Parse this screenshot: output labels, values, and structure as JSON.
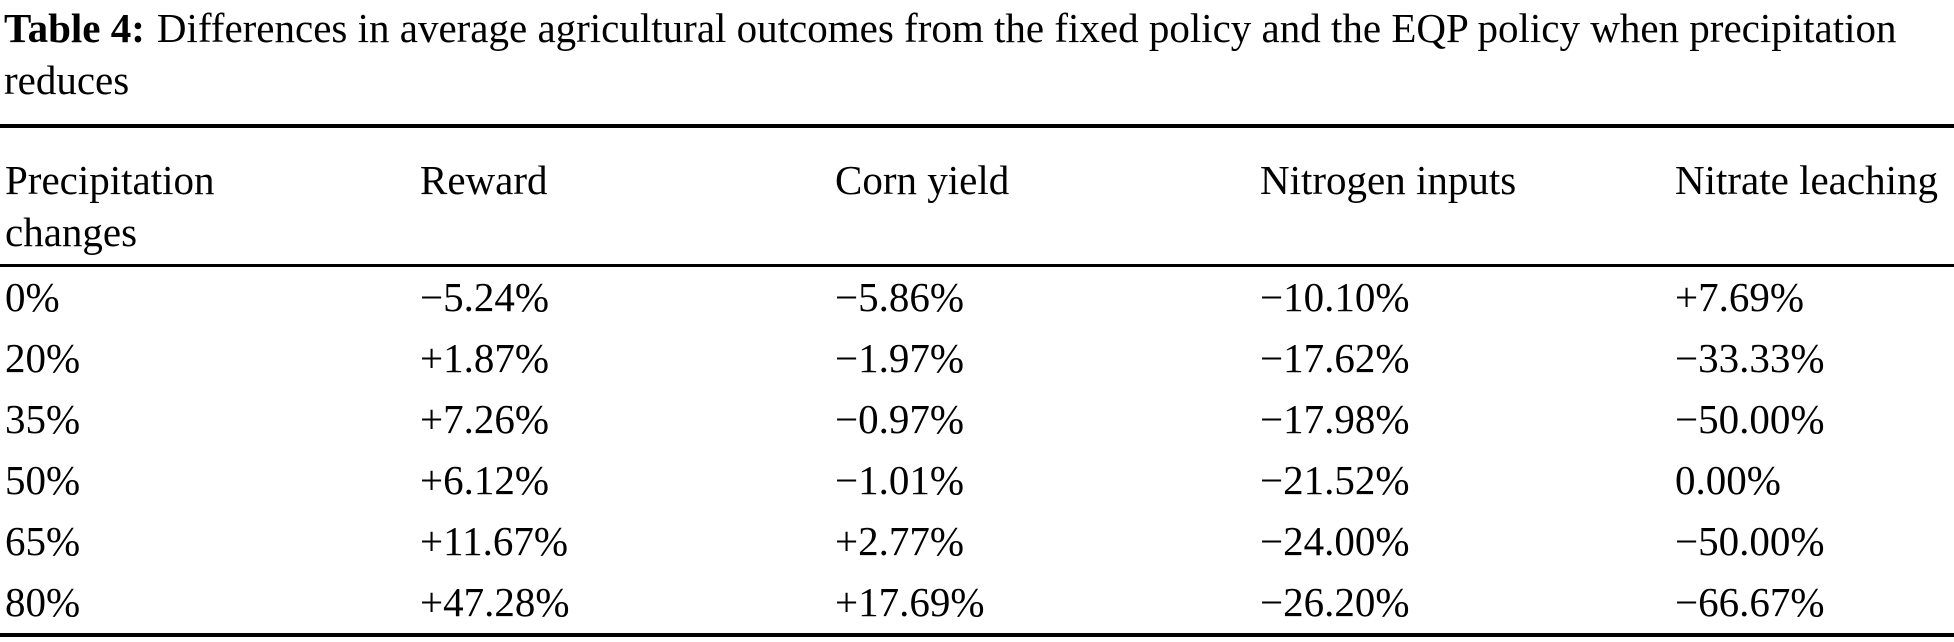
{
  "caption": {
    "label": "Table 4:",
    "text": "Differences in average agricultural outcomes from the fixed policy and the EQP policy when precipitation reduces"
  },
  "table": {
    "columns": [
      "Precipitation changes",
      "Reward",
      "Corn yield",
      "Nitrogen inputs",
      "Nitrate leaching"
    ],
    "rows": [
      [
        "0%",
        "−5.24%",
        "−5.86%",
        "−10.10%",
        "+7.69%"
      ],
      [
        "20%",
        "+1.87%",
        "−1.97%",
        "−17.62%",
        "−33.33%"
      ],
      [
        "35%",
        "+7.26%",
        "−0.97%",
        "−17.98%",
        "−50.00%"
      ],
      [
        "50%",
        "+6.12%",
        "−1.01%",
        "−21.52%",
        "0.00%"
      ],
      [
        "65%",
        "+11.67%",
        "+2.77%",
        "−24.00%",
        "−50.00%"
      ],
      [
        "80%",
        "+47.28%",
        "+17.69%",
        "−26.20%",
        "−66.67%"
      ]
    ]
  },
  "colors": {
    "text": "#000000",
    "background": "#ffffff",
    "rule": "#000000"
  }
}
